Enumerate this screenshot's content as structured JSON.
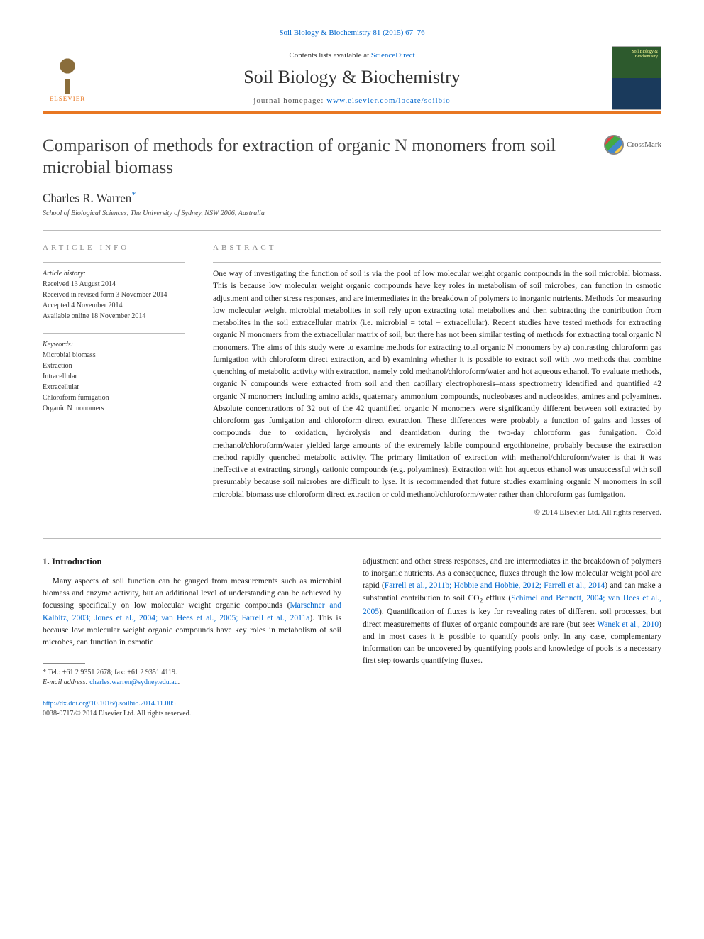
{
  "top_reference": {
    "journal": "Soil Biology & Biochemistry",
    "citation": "81 (2015) 67–76"
  },
  "header": {
    "contents_text": "Contents lists available at",
    "contents_link": "ScienceDirect",
    "journal_name": "Soil Biology & Biochemistry",
    "homepage_label": "journal homepage:",
    "homepage_url": "www.elsevier.com/locate/soilbio",
    "elsevier_label": "ELSEVIER",
    "cover_text": "Soil Biology & Biochemistry"
  },
  "article": {
    "title": "Comparison of methods for extraction of organic N monomers from soil microbial biomass",
    "crossmark_label": "CrossMark",
    "author": "Charles R. Warren",
    "author_marker": "*",
    "affiliation": "School of Biological Sciences, The University of Sydney, NSW 2006, Australia"
  },
  "article_info": {
    "label": "ARTICLE INFO",
    "history_title": "Article history:",
    "received": "Received 13 August 2014",
    "revised": "Received in revised form 3 November 2014",
    "accepted": "Accepted 4 November 2014",
    "online": "Available online 18 November 2014",
    "keywords_title": "Keywords:",
    "keywords": [
      "Microbial biomass",
      "Extraction",
      "Intracellular",
      "Extracellular",
      "Chloroform fumigation",
      "Organic N monomers"
    ]
  },
  "abstract": {
    "label": "ABSTRACT",
    "text": "One way of investigating the function of soil is via the pool of low molecular weight organic compounds in the soil microbial biomass. This is because low molecular weight organic compounds have key roles in metabolism of soil microbes, can function in osmotic adjustment and other stress responses, and are intermediates in the breakdown of polymers to inorganic nutrients. Methods for measuring low molecular weight microbial metabolites in soil rely upon extracting total metabolites and then subtracting the contribution from metabolites in the soil extracellular matrix (i.e. microbial = total − extracellular). Recent studies have tested methods for extracting organic N monomers from the extracellular matrix of soil, but there has not been similar testing of methods for extracting total organic N monomers. The aims of this study were to examine methods for extracting total organic N monomers by a) contrasting chloroform gas fumigation with chloroform direct extraction, and b) examining whether it is possible to extract soil with two methods that combine quenching of metabolic activity with extraction, namely cold methanol/chloroform/water and hot aqueous ethanol. To evaluate methods, organic N compounds were extracted from soil and then capillary electrophoresis–mass spectrometry identified and quantified 42 organic N monomers including amino acids, quaternary ammonium compounds, nucleobases and nucleosides, amines and polyamines. Absolute concentrations of 32 out of the 42 quantified organic N monomers were significantly different between soil extracted by chloroform gas fumigation and chloroform direct extraction. These differences were probably a function of gains and losses of compounds due to oxidation, hydrolysis and deamidation during the two-day chloroform gas fumigation. Cold methanol/chloroform/water yielded large amounts of the extremely labile compound ergothioneine, probably because the extraction method rapidly quenched metabolic activity. The primary limitation of extraction with methanol/chloroform/water is that it was ineffective at extracting strongly cationic compounds (e.g. polyamines). Extraction with hot aqueous ethanol was unsuccessful with soil presumably because soil microbes are difficult to lyse. It is recommended that future studies examining organic N monomers in soil microbial biomass use chloroform direct extraction or cold methanol/chloroform/water rather than chloroform gas fumigation.",
    "copyright": "© 2014 Elsevier Ltd. All rights reserved."
  },
  "body": {
    "section1_heading": "1. Introduction",
    "col1_p1_pre": "Many aspects of soil function can be gauged from measurements such as microbial biomass and enzyme activity, but an additional level of understanding can be achieved by focussing specifically on low molecular weight organic compounds (",
    "col1_p1_link": "Marschner and Kalbitz, 2003; Jones et al., 2004; van Hees et al., 2005; Farrell et al., 2011a",
    "col1_p1_post": "). This is because low molecular weight organic compounds have key roles in metabolism of soil microbes, can function in osmotic",
    "col2_p1_pre": "adjustment and other stress responses, and are intermediates in the breakdown of polymers to inorganic nutrients. As a consequence, fluxes through the low molecular weight pool are rapid (",
    "col2_link1": "Farrell et al., 2011b; Hobbie and Hobbie, 2012; Farrell et al., 2014",
    "col2_mid1": ") and can make a substantial contribution to soil CO",
    "col2_sub": "2",
    "col2_mid2": " efflux (",
    "col2_link2": "Schimel and Bennett, 2004; van Hees et al., 2005",
    "col2_mid3": "). Quantification of fluxes is key for revealing rates of different soil processes, but direct measurements of fluxes of organic compounds are rare (but see: ",
    "col2_link3": "Wanek et al., 2010",
    "col2_post": ") and in most cases it is possible to quantify pools only. In any case, complementary information can be uncovered by quantifying pools and knowledge of pools is a necessary first step towards quantifying fluxes."
  },
  "footnote": {
    "marker": "*",
    "tel": "Tel.: +61 2 9351 2678; fax: +61 2 9351 4119.",
    "email_label": "E-mail address:",
    "email": "charles.warren@sydney.edu.au"
  },
  "doi": {
    "url": "http://dx.doi.org/10.1016/j.soilbio.2014.11.005",
    "issn_line": "0038-0717/© 2014 Elsevier Ltd. All rights reserved."
  },
  "colors": {
    "accent_orange": "#e87722",
    "link_blue": "#0066cc"
  }
}
